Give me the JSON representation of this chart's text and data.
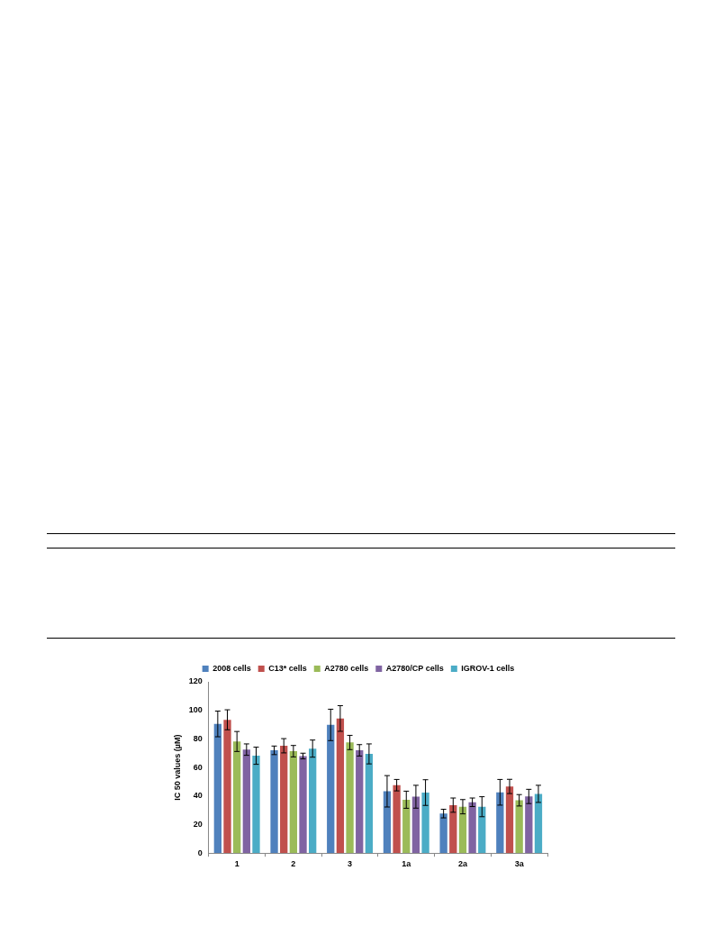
{
  "chart_data": {
    "type": "bar",
    "ylabel": "IC 50 values (µM)",
    "categories": [
      "1",
      "2",
      "3",
      "1a",
      "2a",
      "3a"
    ],
    "series": [
      {
        "name": "2008 cells",
        "color": "#4f81bd",
        "values": [
          90.5,
          72,
          89.8,
          43.3,
          27.7,
          42.6
        ],
        "errors": [
          9,
          3,
          11,
          11,
          3,
          9
        ]
      },
      {
        "name": "C13* cells",
        "color": "#c0504d",
        "values": [
          93.4,
          75.2,
          94.3,
          47.6,
          33.6,
          46.7
        ],
        "errors": [
          7,
          5,
          9,
          4,
          5,
          5
        ]
      },
      {
        "name": "A2780 cells",
        "color": "#9bbb59",
        "values": [
          78.2,
          71.4,
          77.5,
          37.4,
          32.5,
          37
        ],
        "errors": [
          7,
          4,
          5,
          6,
          5,
          4
        ]
      },
      {
        "name": "A2780/CP cells",
        "color": "#8064a2",
        "values": [
          72.5,
          68,
          72,
          39.5,
          35.6,
          39.7
        ],
        "errors": [
          4,
          2,
          4,
          8,
          3,
          5
        ]
      },
      {
        "name": "IGROV-1 cells",
        "color": "#4bacc6",
        "values": [
          68.2,
          73.2,
          69.5,
          42.4,
          32.5,
          41.5
        ],
        "errors": [
          6,
          6,
          7,
          9,
          7,
          6
        ]
      }
    ],
    "ylim": [
      0,
      120
    ],
    "yticks": [
      0,
      20,
      40,
      60,
      80,
      100,
      120
    ],
    "grid": false,
    "legend": "top"
  }
}
